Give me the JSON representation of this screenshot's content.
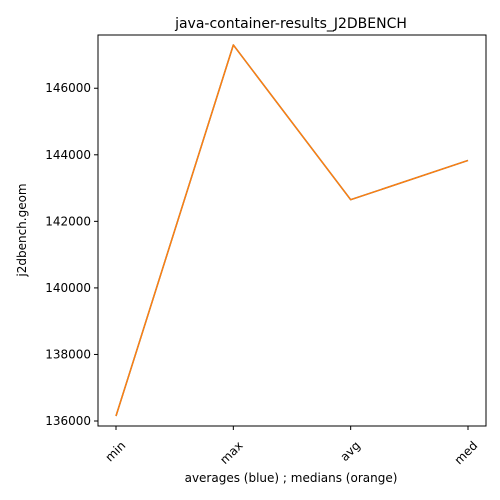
{
  "chart_data": {
    "type": "line",
    "title": "java-container-results_J2DBENCH",
    "xlabel": "averages (blue) ; medians (orange)",
    "ylabel": "j2dbench.geom",
    "categories": [
      "min",
      "max",
      "avg",
      "med"
    ],
    "series": [
      {
        "values": [
          136150,
          147300,
          142650,
          143830
        ],
        "color": "#1f77b4"
      },
      {
        "values": [
          136150,
          147300,
          142650,
          143830
        ],
        "color": "#ff7f0e"
      }
    ],
    "ylim": [
      135850,
      147600
    ],
    "yticks": [
      136000,
      138000,
      140000,
      142000,
      144000,
      146000
    ],
    "ytick_labels": [
      "136000",
      "138000",
      "140000",
      "142000",
      "144000",
      "146000"
    ],
    "grid": false,
    "legend": "none"
  }
}
